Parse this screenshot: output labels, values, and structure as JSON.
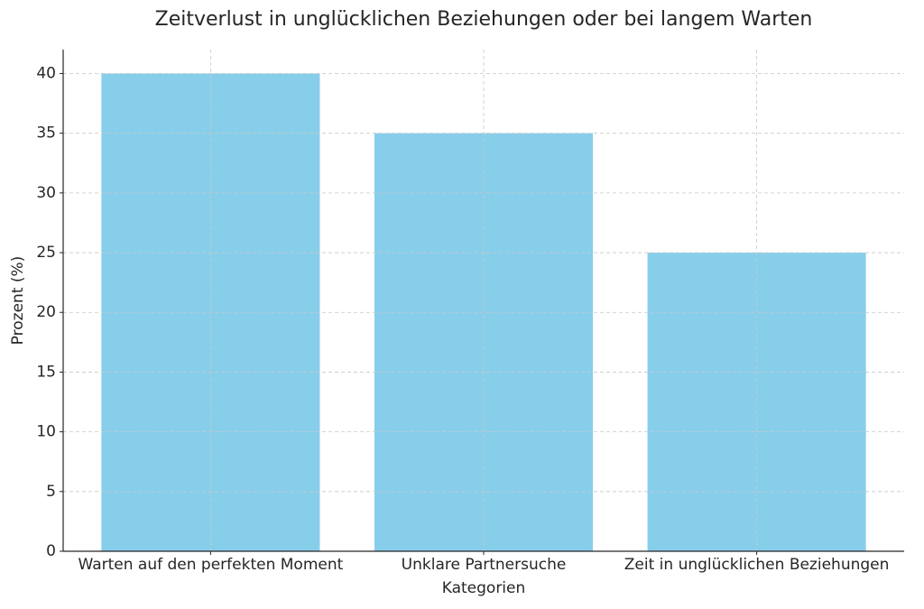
{
  "chart_data": {
    "type": "bar",
    "title": "Zeitverlust in unglücklichen Beziehungen oder bei langem Warten",
    "xlabel": "Kategorien",
    "ylabel": "Prozent (%)",
    "categories": [
      "Warten auf den perfekten Moment",
      "Unklare Partnersuche",
      "Zeit in unglücklichen Beziehungen"
    ],
    "values": [
      40,
      35,
      25
    ],
    "color": "#87ceeb",
    "ylim": [
      0,
      42
    ],
    "yticks": [
      0,
      5,
      10,
      15,
      20,
      25,
      30,
      35,
      40
    ],
    "grid": true
  }
}
